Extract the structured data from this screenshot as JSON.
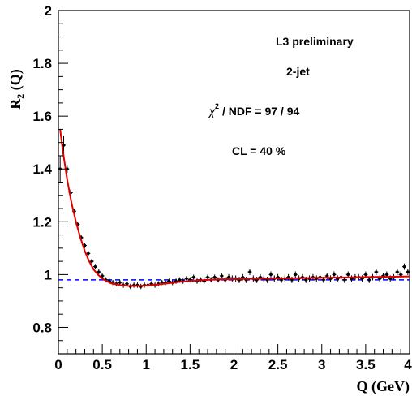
{
  "chart_data": {
    "type": "scatter",
    "xlabel": "Q (GeV)",
    "ylabel_main": "R",
    "ylabel_sub": "2",
    "ylabel_tail": " (Q)",
    "xlim": [
      0,
      4
    ],
    "ylim": [
      0.7,
      2.0
    ],
    "x_ticks": [
      0,
      0.5,
      1,
      1.5,
      2,
      2.5,
      3,
      3.5,
      4
    ],
    "x_tick_labels": [
      "0",
      "0.5",
      "1",
      "1.5",
      "2",
      "2.5",
      "3",
      "3.5",
      "4"
    ],
    "y_ticks": [
      0.8,
      1.0,
      1.2,
      1.4,
      1.6,
      1.8,
      2.0
    ],
    "y_tick_labels": [
      "0.8",
      "1",
      "1.2",
      "1.4",
      "1.6",
      "1.8",
      "2"
    ],
    "annotations": {
      "experiment": "L3 preliminary",
      "selection": "2-jet",
      "chi2_symbol": "χ",
      "chi2_exp": "2",
      "chi2_text": " / NDF = 97 / 94",
      "cl": "CL = 40 %"
    },
    "fit_color": "#e00000",
    "baseline_color": "#0000ff",
    "marker_color": "#000000",
    "baseline_value": 0.98,
    "series": [
      {
        "x": [
          0.02,
          0.06,
          0.1,
          0.14,
          0.18,
          0.22,
          0.26,
          0.3,
          0.34,
          0.38,
          0.42,
          0.46,
          0.5,
          0.54,
          0.58,
          0.62,
          0.66,
          0.7,
          0.74,
          0.78,
          0.82,
          0.86,
          0.9,
          0.94,
          0.98,
          1.02,
          1.06,
          1.1,
          1.14,
          1.18,
          1.22,
          1.26,
          1.3,
          1.34,
          1.38,
          1.42,
          1.46,
          1.5,
          1.54,
          1.58,
          1.62,
          1.66,
          1.7,
          1.74,
          1.78,
          1.82,
          1.86,
          1.9,
          1.94,
          1.98,
          2.02,
          2.06,
          2.1,
          2.14,
          2.18,
          2.22,
          2.26,
          2.3,
          2.34,
          2.38,
          2.42,
          2.46,
          2.5,
          2.54,
          2.58,
          2.62,
          2.66,
          2.7,
          2.74,
          2.78,
          2.82,
          2.86,
          2.9,
          2.94,
          2.98,
          3.02,
          3.06,
          3.1,
          3.14,
          3.18,
          3.22,
          3.26,
          3.3,
          3.34,
          3.38,
          3.42,
          3.46,
          3.5,
          3.54,
          3.58,
          3.62,
          3.66,
          3.7,
          3.74,
          3.78,
          3.82,
          3.86,
          3.9,
          3.94,
          3.98
        ],
        "y": [
          1.4,
          1.49,
          1.4,
          1.31,
          1.24,
          1.19,
          1.14,
          1.11,
          1.08,
          1.05,
          1.03,
          1.01,
          0.995,
          0.98,
          0.975,
          0.97,
          0.965,
          0.97,
          0.96,
          0.965,
          0.955,
          0.96,
          0.96,
          0.955,
          0.96,
          0.96,
          0.965,
          0.96,
          0.965,
          0.97,
          0.97,
          0.975,
          0.97,
          0.975,
          0.98,
          0.975,
          0.985,
          0.98,
          0.99,
          0.975,
          0.98,
          0.975,
          0.99,
          0.98,
          0.99,
          0.98,
          0.995,
          0.98,
          0.99,
          0.985,
          0.985,
          0.98,
          0.99,
          0.98,
          1.01,
          0.985,
          0.98,
          0.99,
          0.985,
          0.98,
          1.0,
          0.985,
          0.99,
          0.98,
          0.985,
          0.99,
          0.98,
          1.0,
          0.985,
          0.99,
          0.98,
          0.985,
          0.99,
          0.985,
          0.99,
          0.98,
          0.995,
          0.985,
          1.0,
          0.985,
          0.99,
          0.98,
          1.0,
          0.985,
          0.99,
          0.99,
          0.985,
          1.0,
          0.98,
          0.99,
          1.01,
          0.985,
          0.995,
          1.0,
          0.985,
          0.99,
          1.01,
          1.0,
          1.03,
          1.01
        ],
        "yerr": [
          0.05,
          0.035,
          0.015,
          0.012,
          0.01,
          0.01,
          0.01,
          0.01,
          0.01,
          0.01,
          0.01,
          0.01,
          0.01,
          0.01,
          0.01,
          0.01,
          0.01,
          0.01,
          0.01,
          0.01,
          0.01,
          0.01,
          0.01,
          0.01,
          0.01,
          0.01,
          0.01,
          0.01,
          0.01,
          0.01,
          0.01,
          0.01,
          0.01,
          0.01,
          0.01,
          0.01,
          0.01,
          0.01,
          0.01,
          0.01,
          0.01,
          0.01,
          0.01,
          0.01,
          0.01,
          0.01,
          0.01,
          0.012,
          0.012,
          0.012,
          0.012,
          0.012,
          0.012,
          0.012,
          0.012,
          0.012,
          0.012,
          0.012,
          0.012,
          0.012,
          0.012,
          0.012,
          0.012,
          0.012,
          0.012,
          0.012,
          0.012,
          0.012,
          0.012,
          0.012,
          0.012,
          0.012,
          0.012,
          0.012,
          0.012,
          0.012,
          0.012,
          0.012,
          0.012,
          0.012,
          0.012,
          0.012,
          0.012,
          0.012,
          0.012,
          0.012,
          0.012,
          0.012,
          0.012,
          0.012,
          0.012,
          0.012,
          0.012,
          0.012,
          0.012,
          0.012,
          0.012,
          0.012,
          0.012,
          0.012
        ]
      }
    ],
    "fit_curve": {
      "x": [
        0.02,
        0.05,
        0.1,
        0.15,
        0.2,
        0.25,
        0.3,
        0.35,
        0.4,
        0.45,
        0.5,
        0.55,
        0.6,
        0.7,
        0.8,
        0.9,
        1.0,
        1.1,
        1.2,
        1.3,
        1.4,
        1.5,
        1.6,
        1.7,
        1.8,
        2.0,
        2.2,
        2.4,
        2.6,
        2.8,
        3.0,
        3.2,
        3.4,
        3.6,
        3.8,
        4.0
      ],
      "y": [
        1.55,
        1.47,
        1.36,
        1.27,
        1.2,
        1.14,
        1.09,
        1.05,
        1.02,
        1.0,
        0.985,
        0.975,
        0.967,
        0.96,
        0.957,
        0.957,
        0.958,
        0.961,
        0.965,
        0.969,
        0.973,
        0.976,
        0.978,
        0.98,
        0.982,
        0.983,
        0.984,
        0.985,
        0.986,
        0.987,
        0.988,
        0.989,
        0.99,
        0.991,
        0.992,
        0.993
      ]
    }
  }
}
